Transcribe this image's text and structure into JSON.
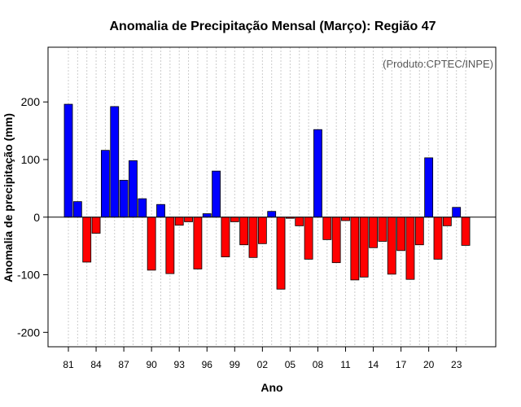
{
  "chart_data": {
    "type": "bar",
    "title": "Anomalia de Precipitação Mensal (Março): Região 47",
    "xlabel": "Ano",
    "ylabel": "Anomalia de precipitação (mm)",
    "annotation": "(Produto:CPTEC/INPE)",
    "ylim": [
      -225,
      295
    ],
    "yticks": [
      -200,
      -100,
      0,
      100,
      200
    ],
    "grid": true,
    "colors": {
      "positive": "#0000ff",
      "negative": "#ff0000"
    },
    "categories": [
      "81",
      "82",
      "83",
      "84",
      "85",
      "86",
      "87",
      "88",
      "89",
      "90",
      "91",
      "92",
      "93",
      "94",
      "95",
      "96",
      "97",
      "98",
      "99",
      "00",
      "01",
      "02",
      "03",
      "04",
      "05",
      "06",
      "07",
      "08",
      "09",
      "10",
      "11",
      "12",
      "13",
      "14",
      "15",
      "16",
      "17",
      "18",
      "19",
      "20",
      "21",
      "22",
      "23",
      "24"
    ],
    "tick_labels": [
      "81",
      "84",
      "87",
      "90",
      "93",
      "96",
      "99",
      "02",
      "05",
      "08",
      "11",
      "14",
      "17",
      "20",
      "23"
    ],
    "values": [
      196,
      27,
      -78,
      -28,
      116,
      192,
      64,
      98,
      32,
      -92,
      22,
      -98,
      -14,
      -8,
      -90,
      6,
      80,
      -69,
      -8,
      -48,
      -70,
      -46,
      10,
      -125,
      -2,
      -15,
      -73,
      152,
      -39,
      -79,
      -6,
      -109,
      -104,
      -53,
      -42,
      -99,
      -58,
      -108,
      -48,
      103,
      -73,
      -15,
      17,
      -49
    ]
  }
}
